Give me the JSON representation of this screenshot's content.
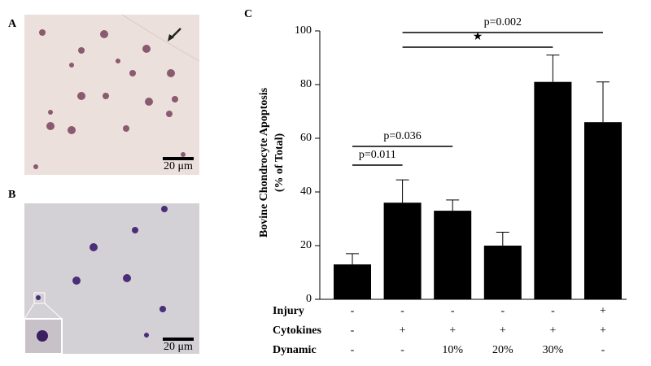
{
  "panels": [
    {
      "label": "A",
      "scale": "20 μm"
    },
    {
      "label": "B",
      "scale": "20 μm"
    }
  ],
  "chart_data": {
    "type": "bar",
    "panel_label": "C",
    "ylabel": [
      "Bovine Chondrocyte Apoptosis",
      "(% of Total)"
    ],
    "values": [
      13,
      36,
      33,
      20,
      81,
      66
    ],
    "errors": [
      4,
      8.5,
      4,
      5,
      10,
      15
    ],
    "color": "#000000",
    "ylim": [
      0,
      100
    ],
    "yticks": [
      0,
      20,
      40,
      60,
      80,
      100
    ],
    "conditions": [
      {
        "name": "Injury",
        "values": [
          "-",
          "-",
          "-",
          "-",
          "-",
          "+"
        ]
      },
      {
        "name": "Cytokines",
        "values": [
          "-",
          "+",
          "+",
          "+",
          "+",
          "+"
        ]
      },
      {
        "name": "Dynamic",
        "values": [
          "-",
          "-",
          "10%",
          "20%",
          "30%",
          "-"
        ]
      }
    ],
    "annotations": [
      "p=0.011",
      "p=0.036",
      "★",
      "p=0.002"
    ]
  }
}
